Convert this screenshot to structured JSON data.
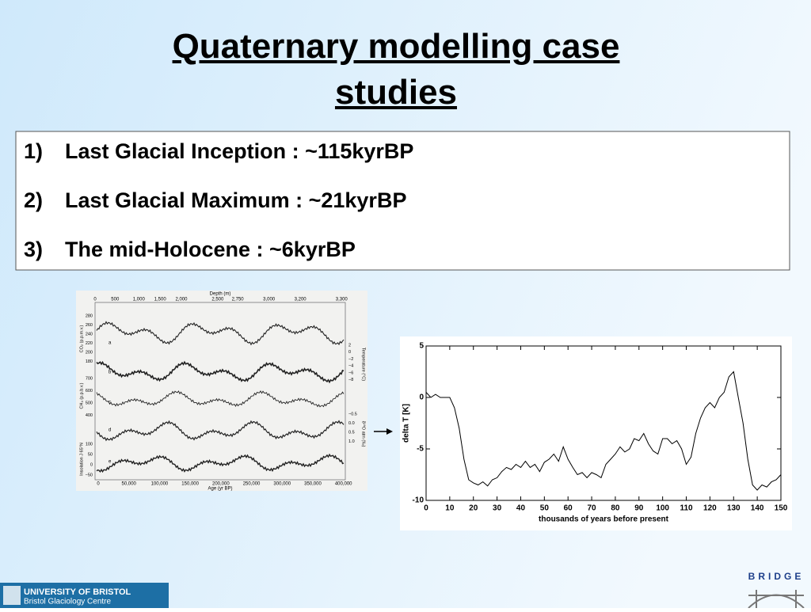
{
  "slide": {
    "title": "Quaternary modelling case studies",
    "items": [
      {
        "number": "1)",
        "text": "Last Glacial Inception : ~115kyrBP"
      },
      {
        "number": "2)",
        "text": "Last Glacial Maximum : ~21kyrBP"
      },
      {
        "number": "3)",
        "text": "The mid-Holocene : ~6kyrBP"
      }
    ],
    "footer": {
      "university": "UNIVERSITY OF BRISTOL",
      "centre": "Bristol Glaciology Centre",
      "project": "BRIDGE"
    }
  },
  "left_figure": {
    "top_axis_label": "Depth (m)",
    "top_ticks": [
      "0",
      "500",
      "1,000",
      "1,500",
      "2,000",
      "2,500",
      "2,750",
      "3,000",
      "3,200",
      "3,300"
    ],
    "bottom_axis_label": "Age (yr BP)",
    "bottom_ticks": [
      "0",
      "50,000",
      "100,000",
      "150,000",
      "200,000",
      "250,000",
      "300,000",
      "350,000",
      "400,000"
    ],
    "left_labels": [
      "CO₂ (p.p.m.v.)",
      "CH₄ (p.p.b.v.)",
      "Insolation J 65°N"
    ],
    "right_labels": [
      "Temperature (°C)",
      "δ¹⁸O atm (‰)"
    ],
    "co2_ticks": [
      "280",
      "260",
      "240",
      "220",
      "200",
      "180"
    ],
    "ch4_ticks": [
      "700",
      "600",
      "500",
      "400"
    ],
    "insolation_ticks": [
      "100",
      "50",
      "0",
      "−50"
    ],
    "temperature_ticks": [
      "2",
      "0",
      "−2",
      "−4",
      "−6",
      "−8"
    ],
    "d18o_ticks": [
      "−0.5",
      "0.0",
      "0.5",
      "1.0"
    ],
    "curve_letters": [
      "a",
      "b",
      "c",
      "d",
      "e"
    ]
  },
  "chart_data": {
    "type": "line",
    "ylabel": "delta T [K]",
    "xlabel": "thousands of years before present",
    "x": [
      0,
      2,
      4,
      6,
      8,
      10,
      12,
      14,
      16,
      18,
      20,
      22,
      24,
      26,
      28,
      30,
      32,
      34,
      36,
      38,
      40,
      42,
      44,
      46,
      48,
      50,
      52,
      54,
      56,
      58,
      60,
      62,
      64,
      66,
      68,
      70,
      72,
      74,
      76,
      78,
      80,
      82,
      84,
      86,
      88,
      90,
      92,
      94,
      96,
      98,
      100,
      102,
      104,
      106,
      108,
      110,
      112,
      114,
      116,
      118,
      120,
      122,
      124,
      126,
      128,
      130,
      132,
      134,
      136,
      138,
      140,
      142,
      144,
      146,
      148,
      150
    ],
    "series": [
      {
        "name": "delta T",
        "color": "#000000",
        "values": [
          0.5,
          0,
          0.3,
          0,
          0,
          0,
          -1,
          -3,
          -6,
          -8,
          -8.3,
          -8.5,
          -8.2,
          -8.6,
          -8,
          -7.8,
          -7.2,
          -6.8,
          -7,
          -6.5,
          -6.8,
          -6.2,
          -6.8,
          -6.5,
          -7.2,
          -6.3,
          -6,
          -5.5,
          -6.2,
          -4.8,
          -6,
          -6.8,
          -7.5,
          -7.3,
          -7.8,
          -7.3,
          -7.5,
          -7.8,
          -6.5,
          -6,
          -5.5,
          -4.8,
          -5.3,
          -5,
          -4,
          -4.2,
          -3.5,
          -4.5,
          -5.2,
          -5.5,
          -4,
          -4,
          -4.5,
          -4.2,
          -5,
          -6.5,
          -5.8,
          -3.5,
          -2,
          -1,
          -0.5,
          -1,
          0,
          0.5,
          2,
          2.5,
          0,
          -2.5,
          -6,
          -8.5,
          -9,
          -8.5,
          -8.7,
          -8.2,
          -8,
          -7.5
        ]
      }
    ],
    "xlim": [
      0,
      150
    ],
    "ylim": [
      -10,
      5
    ],
    "xticks": [
      0,
      10,
      20,
      30,
      40,
      50,
      60,
      70,
      80,
      90,
      100,
      110,
      120,
      130,
      140,
      150
    ],
    "yticks": [
      -10,
      -5,
      0,
      5
    ]
  }
}
